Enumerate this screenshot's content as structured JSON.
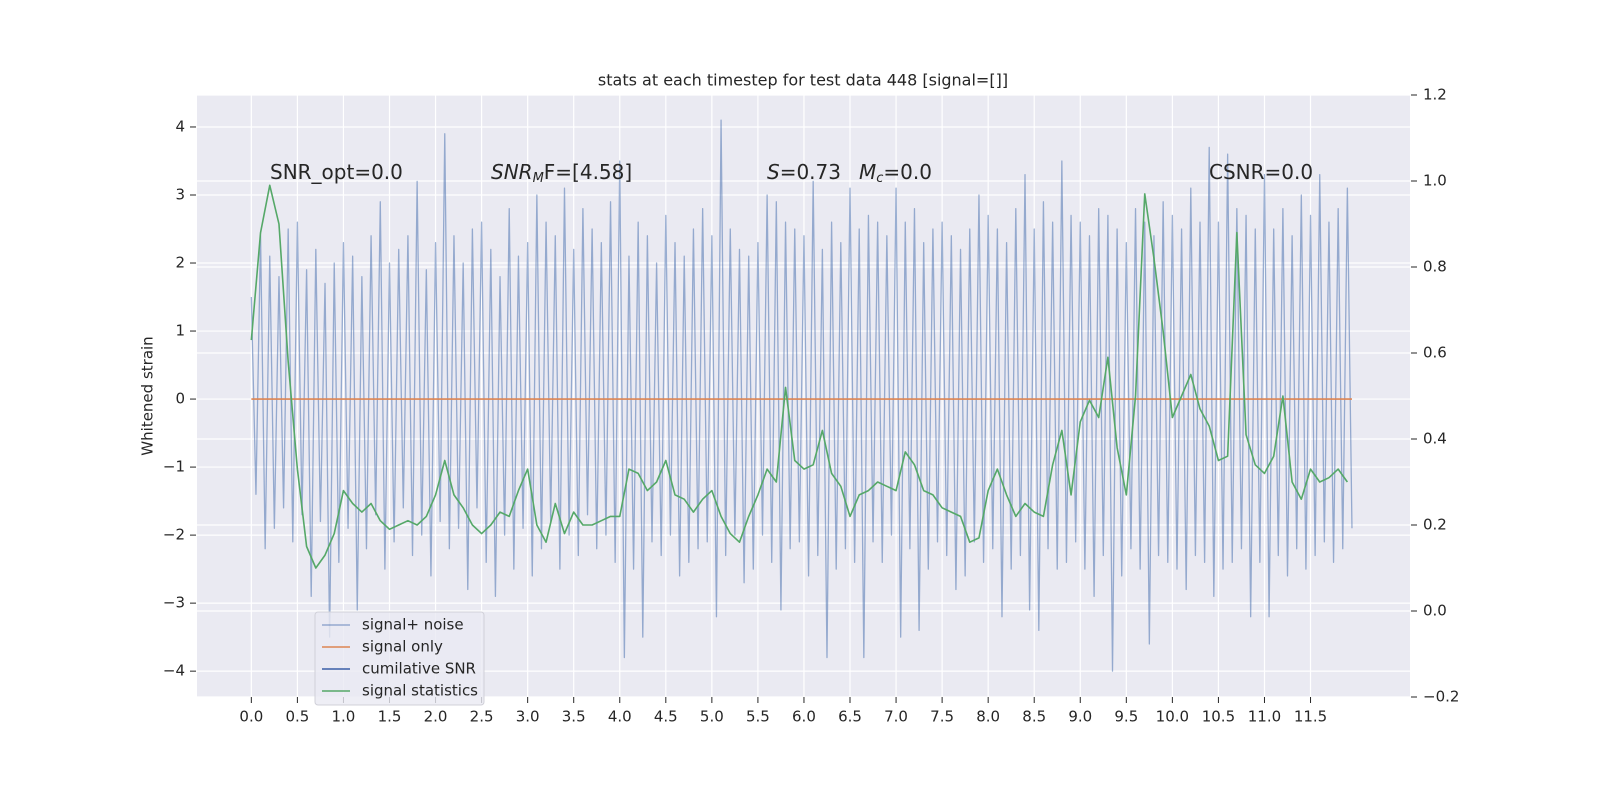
{
  "chart_data": {
    "type": "line",
    "title": "stats at each timestep for test data 448 [signal=[]]",
    "ylabel": "Whitened strain",
    "background": "#eaeaf2",
    "grid": true,
    "legend": "lower left",
    "xlim": [
      -0.59,
      12.58
    ],
    "ylim": [
      -4.38,
      4.47
    ],
    "y2lim": [
      -0.2,
      1.2
    ],
    "xticks": [
      {
        "value": 0,
        "label": "0.0"
      },
      0.5,
      {
        "value": 1,
        "label": "1.0"
      },
      1.5,
      {
        "value": 2,
        "label": "2.0"
      },
      2.5,
      {
        "value": 3,
        "label": "3.0"
      },
      3.5,
      {
        "value": 4,
        "label": "4.0"
      },
      4.5,
      {
        "value": 5,
        "label": "5.0"
      },
      5.5,
      {
        "value": 6,
        "label": "6.0"
      },
      6.5,
      {
        "value": 7,
        "label": "7.0"
      },
      7.5,
      {
        "value": 8,
        "label": "8.0"
      },
      8.5,
      {
        "value": 9,
        "label": "9.0"
      },
      9.5,
      {
        "value": 10,
        "label": "10.0"
      },
      10.5,
      {
        "value": 11,
        "label": "11.0"
      },
      11.5
    ],
    "yticks": [
      {
        "value": -4,
        "label": "−4"
      },
      {
        "value": -3,
        "label": "−3"
      },
      {
        "value": -2,
        "label": "−2"
      },
      {
        "value": -1,
        "label": "−1"
      },
      0,
      1,
      2,
      3,
      4
    ],
    "y2ticks": [
      {
        "value": -0.2,
        "label": "−0.2"
      },
      {
        "value": 0,
        "label": "0.0"
      },
      0.2,
      0.4,
      0.6,
      0.8,
      {
        "value": 1,
        "label": "1.0"
      },
      1.2
    ],
    "annotations": [
      [
        "SNR_opt=0.0"
      ],
      [
        "SNR",
        "M",
        "F=[4.58]"
      ],
      [
        "S",
        "=0.73"
      ],
      [
        "M",
        "c",
        "=0.0"
      ],
      [
        "CSNR=0.0"
      ]
    ],
    "series": [
      {
        "name": "signal+ noise",
        "color": "#4c72b0",
        "alpha": 0.55,
        "x": [
          0,
          0.05,
          0.1,
          0.15,
          0.2,
          0.25,
          0.3,
          0.35,
          0.4,
          0.45,
          0.5,
          0.55,
          0.6,
          0.65,
          0.7,
          0.75,
          0.8,
          0.85,
          0.9,
          0.95,
          1,
          1.05,
          1.1,
          1.15,
          1.2,
          1.25,
          1.3,
          1.35,
          1.4,
          1.45,
          1.5,
          1.55,
          1.6,
          1.65,
          1.7,
          1.75,
          1.8,
          1.85,
          1.9,
          1.95,
          2,
          2.05,
          2.1,
          2.15,
          2.2,
          2.25,
          2.3,
          2.35,
          2.4,
          2.45,
          2.5,
          2.55,
          2.6,
          2.65,
          2.7,
          2.75,
          2.8,
          2.85,
          2.9,
          2.95,
          3,
          3.05,
          3.1,
          3.15,
          3.2,
          3.25,
          3.3,
          3.35,
          3.4,
          3.45,
          3.5,
          3.55,
          3.6,
          3.65,
          3.7,
          3.75,
          3.8,
          3.85,
          3.9,
          3.95,
          4,
          4.05,
          4.1,
          4.15,
          4.2,
          4.25,
          4.3,
          4.35,
          4.4,
          4.45,
          4.5,
          4.55,
          4.6,
          4.65,
          4.7,
          4.75,
          4.8,
          4.85,
          4.9,
          4.95,
          5,
          5.05,
          5.1,
          5.15,
          5.2,
          5.25,
          5.3,
          5.35,
          5.4,
          5.45,
          5.5,
          5.55,
          5.6,
          5.65,
          5.7,
          5.75,
          5.8,
          5.85,
          5.9,
          5.95,
          6,
          6.05,
          6.1,
          6.15,
          6.2,
          6.25,
          6.3,
          6.35,
          6.4,
          6.45,
          6.5,
          6.55,
          6.6,
          6.65,
          6.7,
          6.75,
          6.8,
          6.85,
          6.9,
          6.95,
          7,
          7.05,
          7.1,
          7.15,
          7.2,
          7.25,
          7.3,
          7.35,
          7.4,
          7.45,
          7.5,
          7.55,
          7.6,
          7.65,
          7.7,
          7.75,
          7.8,
          7.85,
          7.9,
          7.95,
          8,
          8.05,
          8.1,
          8.15,
          8.2,
          8.25,
          8.3,
          8.35,
          8.4,
          8.45,
          8.5,
          8.55,
          8.6,
          8.65,
          8.7,
          8.75,
          8.8,
          8.85,
          8.9,
          8.95,
          9,
          9.05,
          9.1,
          9.15,
          9.2,
          9.25,
          9.3,
          9.35,
          9.4,
          9.45,
          9.5,
          9.55,
          9.6,
          9.65,
          9.7,
          9.75,
          9.8,
          9.85,
          9.9,
          9.95,
          10,
          10.05,
          10.1,
          10.15,
          10.2,
          10.25,
          10.3,
          10.35,
          10.4,
          10.45,
          10.5,
          10.55,
          10.6,
          10.65,
          10.7,
          10.75,
          10.8,
          10.85,
          10.9,
          10.95,
          11,
          11.05,
          11.1,
          11.15,
          11.2,
          11.25,
          11.3,
          11.35,
          11.4,
          11.45,
          11.5,
          11.55,
          11.6,
          11.65,
          11.7,
          11.75,
          11.8,
          11.85,
          11.9,
          11.95
        ],
        "values": [
          1.5,
          -1.4,
          2.4,
          -2.2,
          2.1,
          -1.9,
          1.8,
          -1.6,
          2.5,
          -2.1,
          2.6,
          -1.7,
          1.9,
          -2.9,
          2.2,
          -1.8,
          1.7,
          -3.5,
          2.0,
          -2.4,
          2.3,
          -1.9,
          2.1,
          -3.1,
          1.8,
          -2.2,
          2.4,
          -1.7,
          2.9,
          -2.5,
          2.0,
          -2.1,
          2.2,
          -1.6,
          2.4,
          -2.3,
          3.2,
          -2.0,
          1.9,
          -2.6,
          2.3,
          -1.8,
          3.9,
          -2.2,
          2.4,
          -1.9,
          2.0,
          -2.8,
          2.5,
          -1.6,
          2.6,
          -2.4,
          2.2,
          -2.9,
          1.8,
          -2.0,
          2.8,
          -2.5,
          2.1,
          -1.9,
          2.3,
          -2.6,
          3.0,
          -2.2,
          2.6,
          -1.8,
          2.4,
          -2.5,
          3.1,
          -2.0,
          2.2,
          -2.3,
          2.8,
          -1.7,
          2.5,
          -2.2,
          2.3,
          -2.0,
          2.9,
          -2.4,
          3.5,
          -3.8,
          2.1,
          -2.5,
          2.6,
          -3.5,
          2.4,
          -2.1,
          2.0,
          -2.3,
          2.7,
          -2.0,
          2.3,
          -2.6,
          2.1,
          -2.4,
          2.5,
          -2.2,
          2.8,
          -2.1,
          2.4,
          -3.2,
          4.1,
          -2.3,
          2.5,
          -2.0,
          2.2,
          -2.7,
          2.1,
          -2.5,
          2.3,
          -2.0,
          3.0,
          -2.4,
          2.9,
          -3.1,
          2.6,
          -2.2,
          2.5,
          -2.1,
          2.4,
          -2.6,
          3.2,
          -2.3,
          2.2,
          -3.8,
          2.6,
          -2.5,
          2.3,
          -2.2,
          3.1,
          -2.4,
          2.5,
          -3.8,
          2.7,
          -2.1,
          2.6,
          -2.4,
          2.4,
          -2.0,
          3.1,
          -3.5,
          2.6,
          -2.2,
          2.8,
          -3.4,
          2.3,
          -2.5,
          2.5,
          -2.1,
          2.6,
          -2.3,
          2.4,
          -2.8,
          2.2,
          -2.6,
          2.5,
          -2.1,
          3.0,
          -2.4,
          2.7,
          -2.2,
          2.5,
          -3.2,
          2.3,
          -2.5,
          2.8,
          -2.3,
          3.3,
          -3.1,
          2.5,
          -3.4,
          2.9,
          -2.2,
          2.6,
          -2.5,
          3.5,
          -2.4,
          2.7,
          -2.1,
          2.6,
          -2.5,
          2.4,
          -2.9,
          2.8,
          -2.3,
          2.7,
          -4.0,
          2.5,
          -2.6,
          2.3,
          -2.2,
          2.8,
          -2.5,
          2.6,
          -3.6,
          2.4,
          -2.3,
          2.9,
          -2.4,
          2.7,
          -2.5,
          2.5,
          -2.8,
          3.1,
          -2.3,
          2.6,
          -2.4,
          3.7,
          -2.9,
          2.6,
          -2.5,
          3.6,
          -2.4,
          2.8,
          -2.2,
          2.7,
          -3.2,
          2.5,
          -2.4,
          3.3,
          -3.2,
          2.5,
          -2.3,
          2.8,
          -2.6,
          2.4,
          -2.2,
          3.0,
          -2.5,
          2.7,
          -2.3,
          3.3,
          -2.1,
          2.6,
          -2.4,
          2.8,
          -2.2,
          3.1,
          -1.9
        ]
      },
      {
        "name": "signal only",
        "color": "#dd8452",
        "x": [
          0,
          11.95
        ],
        "values": [
          0,
          0
        ]
      },
      {
        "name": "cumilative SNR",
        "color": "#3a5ea8",
        "x": [],
        "values": []
      },
      {
        "name": "signal statistics",
        "color": "#55a868",
        "axis": "y2",
        "x": [
          0,
          0.1,
          0.2,
          0.3,
          0.4,
          0.5,
          0.6,
          0.7,
          0.8,
          0.9,
          1,
          1.1,
          1.2,
          1.3,
          1.4,
          1.5,
          1.6,
          1.7,
          1.8,
          1.9,
          2,
          2.1,
          2.2,
          2.3,
          2.4,
          2.5,
          2.6,
          2.7,
          2.8,
          2.9,
          3,
          3.1,
          3.2,
          3.3,
          3.4,
          3.5,
          3.6,
          3.7,
          3.8,
          3.9,
          4,
          4.1,
          4.2,
          4.3,
          4.4,
          4.5,
          4.6,
          4.7,
          4.8,
          4.9,
          5,
          5.1,
          5.2,
          5.3,
          5.4,
          5.5,
          5.6,
          5.7,
          5.8,
          5.9,
          6,
          6.1,
          6.2,
          6.3,
          6.4,
          6.5,
          6.6,
          6.7,
          6.8,
          6.9,
          7,
          7.1,
          7.2,
          7.3,
          7.4,
          7.5,
          7.6,
          7.7,
          7.8,
          7.9,
          8,
          8.1,
          8.2,
          8.3,
          8.4,
          8.5,
          8.6,
          8.7,
          8.8,
          8.9,
          9,
          9.1,
          9.2,
          9.3,
          9.4,
          9.5,
          9.6,
          9.7,
          9.8,
          9.9,
          10,
          10.1,
          10.2,
          10.3,
          10.4,
          10.5,
          10.6,
          10.7,
          10.8,
          10.9,
          11,
          11.1,
          11.2,
          11.3,
          11.4,
          11.5,
          11.6,
          11.7,
          11.8,
          11.9
        ],
        "values": [
          0.63,
          0.88,
          0.99,
          0.9,
          0.58,
          0.33,
          0.15,
          0.1,
          0.13,
          0.18,
          0.28,
          0.25,
          0.23,
          0.25,
          0.21,
          0.19,
          0.2,
          0.21,
          0.2,
          0.22,
          0.27,
          0.35,
          0.27,
          0.24,
          0.2,
          0.18,
          0.2,
          0.23,
          0.22,
          0.28,
          0.33,
          0.2,
          0.16,
          0.25,
          0.18,
          0.23,
          0.2,
          0.2,
          0.21,
          0.22,
          0.22,
          0.33,
          0.32,
          0.28,
          0.3,
          0.35,
          0.27,
          0.26,
          0.23,
          0.26,
          0.28,
          0.22,
          0.18,
          0.16,
          0.22,
          0.27,
          0.33,
          0.3,
          0.52,
          0.35,
          0.33,
          0.34,
          0.42,
          0.32,
          0.29,
          0.22,
          0.27,
          0.28,
          0.3,
          0.29,
          0.28,
          0.37,
          0.34,
          0.28,
          0.27,
          0.24,
          0.23,
          0.22,
          0.16,
          0.17,
          0.28,
          0.33,
          0.27,
          0.22,
          0.25,
          0.23,
          0.22,
          0.34,
          0.42,
          0.27,
          0.44,
          0.49,
          0.45,
          0.59,
          0.38,
          0.27,
          0.5,
          0.97,
          0.82,
          0.65,
          0.45,
          0.5,
          0.55,
          0.47,
          0.43,
          0.35,
          0.36,
          0.88,
          0.41,
          0.34,
          0.32,
          0.36,
          0.5,
          0.3,
          0.26,
          0.33,
          0.3,
          0.31,
          0.33,
          0.3
        ]
      }
    ]
  }
}
